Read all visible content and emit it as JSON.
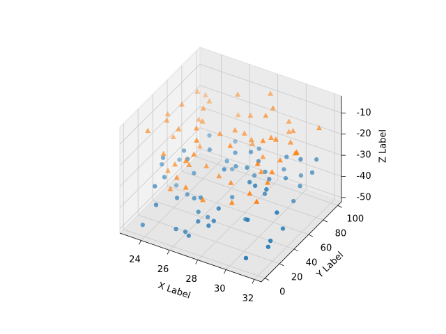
{
  "chart_data": {
    "type": "scatter3d",
    "xlabel": "X Label",
    "ylabel": "Y Label",
    "zlabel": "Z Label",
    "xlim": [
      22.5,
      32.5
    ],
    "ylim": [
      -5,
      105
    ],
    "zlim": [
      -52,
      -2
    ],
    "xticks": [
      24,
      26,
      28,
      30,
      32
    ],
    "yticks": [
      0,
      20,
      40,
      60,
      80,
      100
    ],
    "zticks": [
      -50,
      -40,
      -30,
      -20,
      -10
    ],
    "grid": true,
    "series": [
      {
        "marker": "o",
        "color": "#1f77b4",
        "x": [
          24.1,
          30.5,
          27.3,
          25.8,
          31.2,
          23.6,
          28.9,
          26.4,
          29.7,
          24.8,
          31.8,
          27.9,
          23.2,
          30.1,
          26.7,
          28.3,
          25.1,
          29.4,
          31.5,
          24.4,
          27.0,
          30.8,
          26.0,
          28.6,
          23.9,
          29.1,
          25.5,
          31.0,
          27.6,
          24.9,
          30.3,
          26.9,
          28.0,
          23.4,
          29.9,
          25.3,
          31.6,
          27.2,
          24.6,
          30.6,
          26.2,
          28.8,
          23.7,
          29.5,
          25.9,
          31.3,
          27.8,
          24.2,
          30.0,
          26.5,
          28.4,
          23.1,
          29.2,
          25.6,
          31.9,
          27.4,
          24.7,
          30.9,
          26.1,
          28.1
        ],
        "y": [
          12,
          78,
          45,
          33,
          90,
          5,
          61,
          27,
          84,
          52,
          18,
          70,
          39,
          96,
          8,
          57,
          23,
          66,
          44,
          81,
          15,
          35,
          74,
          49,
          29,
          92,
          60,
          3,
          87,
          41,
          19,
          68,
          10,
          55,
          37,
          99,
          25,
          63,
          47,
          85,
          13,
          72,
          31,
          58,
          6,
          94,
          21,
          50,
          77,
          38,
          16,
          65,
          43,
          89,
          28,
          54,
          2,
          80,
          36,
          71
        ],
        "z": [
          -32,
          -47,
          -28,
          -41,
          -36,
          -49,
          -26,
          -44,
          -30,
          -38,
          -45,
          -27,
          -33,
          -42,
          -48,
          -29,
          -39,
          -35,
          -46,
          -31,
          -43,
          -26,
          -37,
          -50,
          -34,
          -40,
          -28,
          -47,
          -32,
          -44,
          -36,
          -29,
          -41,
          -48,
          -27,
          -38,
          -45,
          -33,
          -30,
          -42,
          -49,
          -35,
          -26,
          -39,
          -46,
          -31,
          -43,
          -28,
          -37,
          -50,
          -34,
          -40,
          -29,
          -47,
          -32,
          -44,
          -36,
          -27,
          -41,
          -38
        ]
      },
      {
        "marker": "^",
        "color": "#ff7f0e",
        "x": [
          23.5,
          29.8,
          26.3,
          31.4,
          24.7,
          28.2,
          30.7,
          25.2,
          27.5,
          23.8,
          31.1,
          26.8,
          29.0,
          24.3,
          30.2,
          27.1,
          25.7,
          31.7,
          28.5,
          23.3,
          29.6,
          26.6,
          24.0,
          30.4,
          27.7,
          25.4,
          31.9,
          28.7,
          23.9,
          29.3,
          26.0,
          30.9,
          24.5,
          27.9,
          25.0,
          31.3,
          28.0,
          23.6,
          29.9,
          26.2,
          30.0,
          24.9,
          27.3,
          25.8,
          31.6,
          28.9,
          23.1,
          29.4,
          26.9,
          30.6,
          24.2,
          27.6,
          25.5,
          31.0,
          28.3,
          23.7,
          29.1,
          26.4,
          30.3,
          24.8
        ],
        "y": [
          40,
          7,
          83,
          25,
          62,
          91,
          14,
          56,
          34,
          76,
          48,
          2,
          69,
          20,
          88,
          43,
          11,
          59,
          30,
          97,
          51,
          17,
          74,
          38,
          65,
          8,
          86,
          27,
          53,
          95,
          22,
          46,
          79,
          4,
          61,
          33,
          70,
          12,
          89,
          42,
          57,
          24,
          81,
          36,
          6,
          67,
          49,
          93,
          15,
          72,
          28,
          54,
          99,
          19,
          63,
          45,
          77,
          10,
          84,
          31
        ],
        "z": [
          -12,
          -25,
          -8,
          -18,
          -29,
          -6,
          -21,
          -14,
          -27,
          -10,
          -16,
          -23,
          -7,
          -19,
          -28,
          -11,
          -24,
          -15,
          -9,
          -20,
          -26,
          -13,
          -22,
          -5,
          -17,
          -29,
          -12,
          -25,
          -8,
          -18,
          -21,
          -6,
          -14,
          -27,
          -10,
          -16,
          -23,
          -7,
          -19,
          -28,
          -11,
          -24,
          -15,
          -9,
          -20,
          -26,
          -13,
          -22,
          -5,
          -17,
          -30,
          -12,
          -25,
          -8,
          -18,
          -21,
          -6,
          -14,
          -27,
          -10
        ]
      }
    ]
  }
}
